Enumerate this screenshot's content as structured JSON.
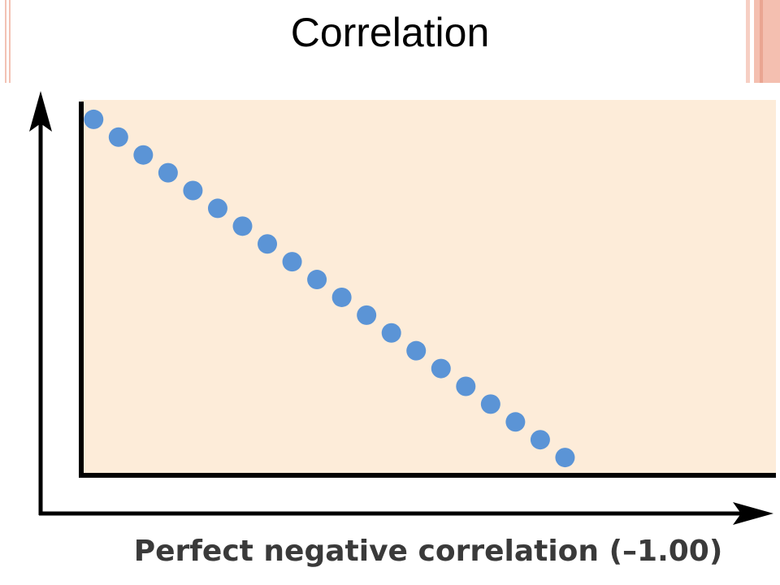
{
  "chart_data": {
    "type": "scatter",
    "title": "Correlation",
    "x_label": "Perfect negative correlation (–1.00)",
    "x": [
      0.5,
      1.5,
      2.5,
      3.5,
      4.5,
      5.5,
      6.5,
      7.5,
      8.5,
      9.5,
      10.5,
      11.5,
      12.5,
      13.5,
      14.5,
      15.5,
      16.5,
      17.5,
      18.5,
      19.5
    ],
    "values": [
      20,
      19,
      18,
      17,
      16,
      15,
      14,
      13,
      12,
      11,
      10,
      9,
      8,
      7,
      6,
      5,
      4,
      3,
      2,
      1
    ],
    "color": "#5b94d6",
    "xlim": [
      0,
      28
    ],
    "ylim": [
      0,
      21
    ]
  }
}
